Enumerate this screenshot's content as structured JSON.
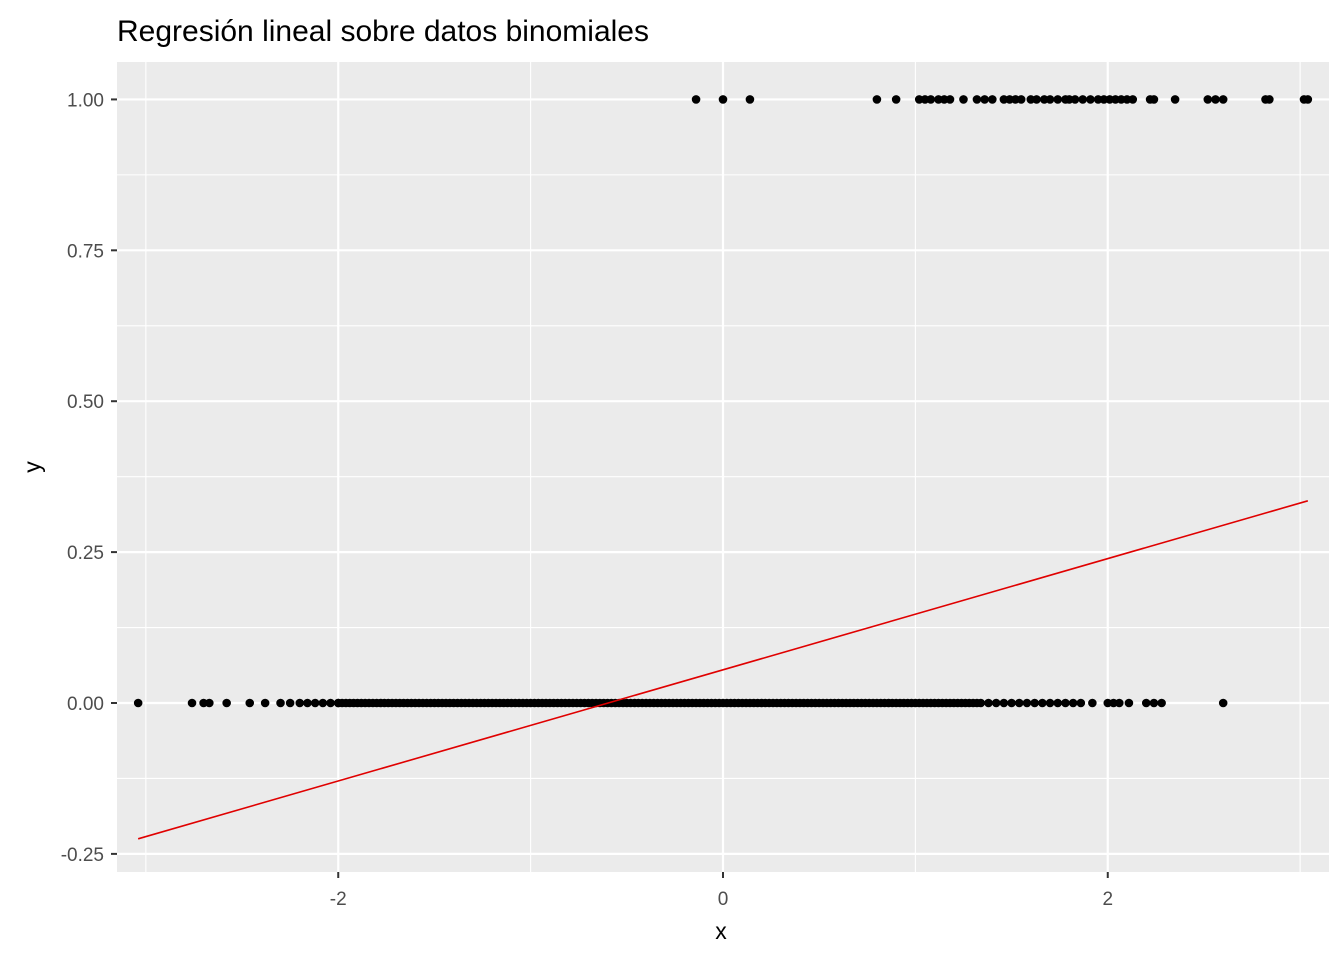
{
  "chart_data": {
    "type": "scatter",
    "title": "Regresión lineal sobre datos binomiales",
    "xlabel": "x",
    "ylabel": "y",
    "xlim": [
      -3.15,
      3.15
    ],
    "ylim": [
      -0.28,
      1.062
    ],
    "x_ticks": [
      -2,
      0,
      2
    ],
    "x_tick_labels": [
      "-2",
      "0",
      "2"
    ],
    "y_ticks": [
      -0.25,
      0,
      0.25,
      0.5,
      0.75,
      1.0
    ],
    "y_tick_labels": [
      "-0.25",
      "0.00",
      "0.25",
      "0.50",
      "0.75",
      "1.00"
    ],
    "grid": true,
    "background_color": "#ebebeb",
    "grid_color": "#ffffff",
    "point_color": "#000000",
    "series": [
      {
        "type": "scatter",
        "points_y1_x": [
          -0.14,
          0.0,
          0.14,
          0.8,
          0.9,
          1.02,
          1.05,
          1.08,
          1.12,
          1.15,
          1.18,
          1.25,
          1.32,
          1.36,
          1.4,
          1.46,
          1.49,
          1.52,
          1.55,
          1.6,
          1.63,
          1.67,
          1.7,
          1.74,
          1.78,
          1.8,
          1.83,
          1.87,
          1.91,
          1.95,
          1.98,
          2.01,
          2.04,
          2.07,
          2.1,
          2.13,
          2.22,
          2.24,
          2.35,
          2.52,
          2.56,
          2.6,
          2.82,
          2.84,
          3.02,
          3.04
        ],
        "points_y0_x_sparse": [
          -3.04,
          -2.76,
          -2.7,
          -2.67,
          -2.58,
          -2.46,
          -2.38,
          -2.3,
          -2.25,
          -2.2,
          -2.16,
          -2.12,
          -2.08,
          -2.04,
          -2.0,
          1.38,
          1.42,
          1.46,
          1.5,
          1.54,
          1.58,
          1.62,
          1.66,
          1.7,
          1.74,
          1.78,
          1.82,
          1.86,
          1.92,
          2.0,
          2.03,
          2.06,
          2.11,
          2.2,
          2.24,
          2.28,
          2.6
        ],
        "points_y0_dense_range": [
          -2.0,
          1.35
        ]
      },
      {
        "type": "line",
        "color": "#e00000",
        "x": [
          -3.04,
          3.04
        ],
        "y": [
          -0.225,
          0.335
        ]
      }
    ]
  }
}
